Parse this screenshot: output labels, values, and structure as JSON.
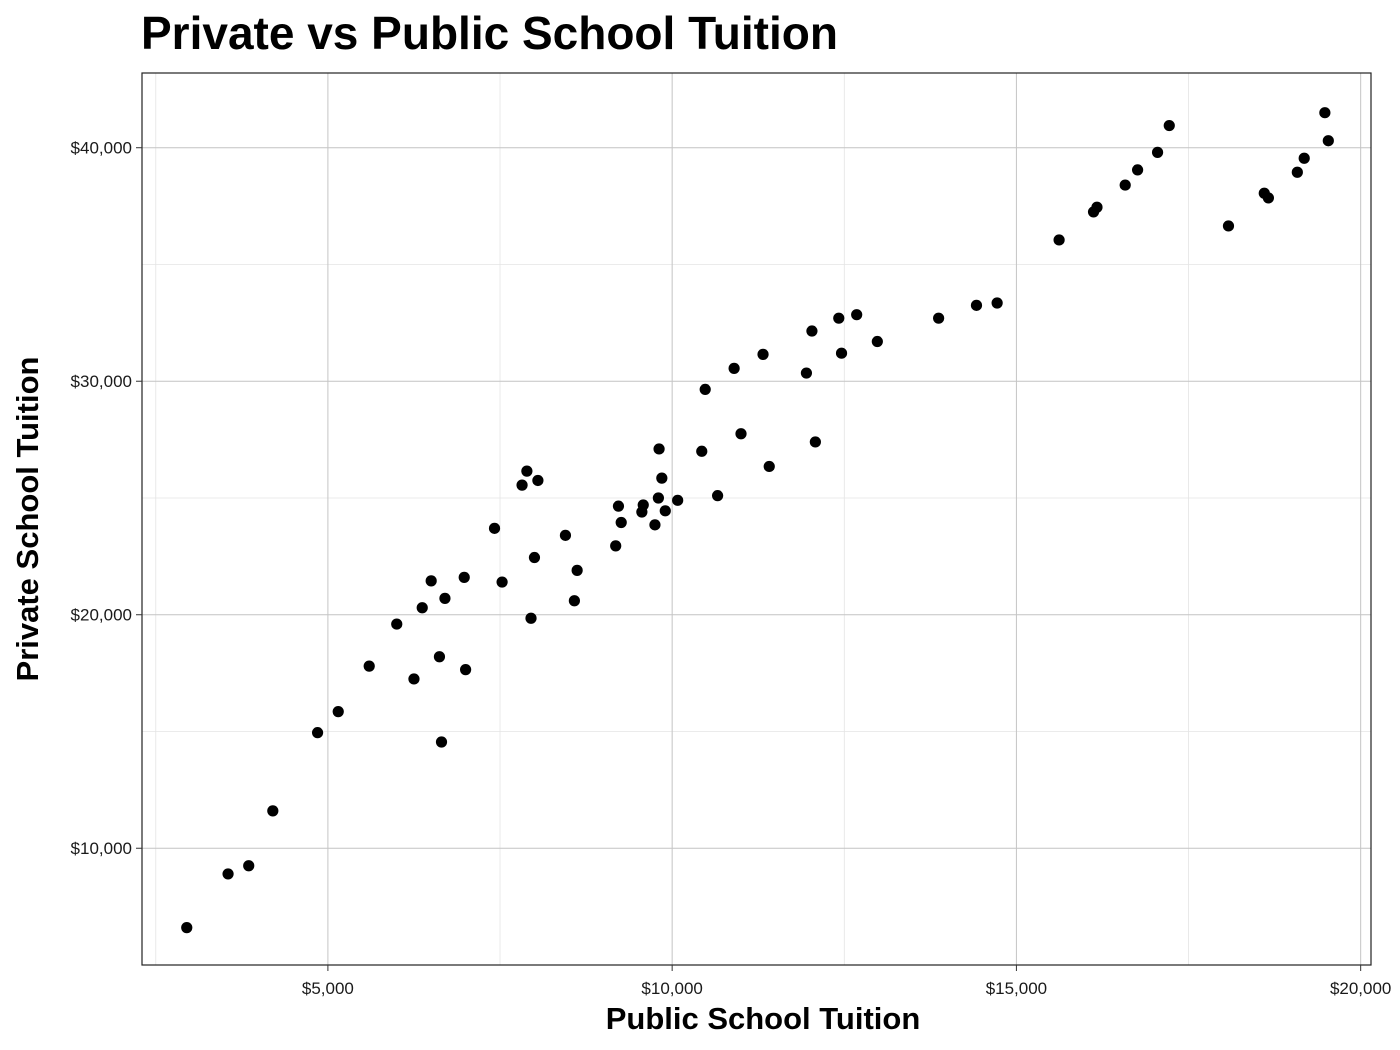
{
  "chart_data": {
    "type": "scatter",
    "title": "Private vs Public School Tuition",
    "xlabel": "Public School Tuition",
    "ylabel": "Private School Tuition",
    "xlim": [
      2300,
      20150
    ],
    "ylim": [
      5000,
      43200
    ],
    "x_ticks": [
      5000,
      10000,
      15000,
      20000
    ],
    "x_tick_labels": [
      "$5,000",
      "$10,000",
      "$15,000",
      "$20,000"
    ],
    "y_ticks": [
      10000,
      20000,
      30000,
      40000
    ],
    "y_tick_labels": [
      "$10,000",
      "$20,000",
      "$30,000",
      "$40,000"
    ],
    "grid": true,
    "point_color": "#000000",
    "points": [
      {
        "x": 2950,
        "y": 6600
      },
      {
        "x": 3550,
        "y": 8900
      },
      {
        "x": 3850,
        "y": 9250
      },
      {
        "x": 4200,
        "y": 11600
      },
      {
        "x": 4850,
        "y": 14950
      },
      {
        "x": 5150,
        "y": 15850
      },
      {
        "x": 5600,
        "y": 17800
      },
      {
        "x": 6000,
        "y": 19600
      },
      {
        "x": 6250,
        "y": 17250
      },
      {
        "x": 6370,
        "y": 20300
      },
      {
        "x": 6500,
        "y": 21450
      },
      {
        "x": 6620,
        "y": 18200
      },
      {
        "x": 6650,
        "y": 14550
      },
      {
        "x": 6700,
        "y": 20700
      },
      {
        "x": 6980,
        "y": 21600
      },
      {
        "x": 7000,
        "y": 17650
      },
      {
        "x": 7420,
        "y": 23700
      },
      {
        "x": 7530,
        "y": 21400
      },
      {
        "x": 7820,
        "y": 25550
      },
      {
        "x": 7890,
        "y": 26150
      },
      {
        "x": 7950,
        "y": 19850
      },
      {
        "x": 8000,
        "y": 22450
      },
      {
        "x": 8050,
        "y": 25750
      },
      {
        "x": 8450,
        "y": 23400
      },
      {
        "x": 8580,
        "y": 20600
      },
      {
        "x": 8620,
        "y": 21900
      },
      {
        "x": 9180,
        "y": 22950
      },
      {
        "x": 9220,
        "y": 24650
      },
      {
        "x": 9260,
        "y": 23950
      },
      {
        "x": 9560,
        "y": 24400
      },
      {
        "x": 9580,
        "y": 24700
      },
      {
        "x": 9750,
        "y": 23850
      },
      {
        "x": 9800,
        "y": 25000
      },
      {
        "x": 9810,
        "y": 27100
      },
      {
        "x": 9850,
        "y": 25850
      },
      {
        "x": 9900,
        "y": 24450
      },
      {
        "x": 10080,
        "y": 24900
      },
      {
        "x": 10430,
        "y": 27000
      },
      {
        "x": 10480,
        "y": 29650
      },
      {
        "x": 10660,
        "y": 25100
      },
      {
        "x": 10900,
        "y": 30550
      },
      {
        "x": 11000,
        "y": 27750
      },
      {
        "x": 11320,
        "y": 31150
      },
      {
        "x": 11410,
        "y": 26350
      },
      {
        "x": 11950,
        "y": 30350
      },
      {
        "x": 12030,
        "y": 32150
      },
      {
        "x": 12080,
        "y": 27400
      },
      {
        "x": 12420,
        "y": 32700
      },
      {
        "x": 12460,
        "y": 31200
      },
      {
        "x": 12680,
        "y": 32850
      },
      {
        "x": 12980,
        "y": 31700
      },
      {
        "x": 13870,
        "y": 32700
      },
      {
        "x": 14420,
        "y": 33250
      },
      {
        "x": 14720,
        "y": 33350
      },
      {
        "x": 15620,
        "y": 36050
      },
      {
        "x": 16120,
        "y": 37250
      },
      {
        "x": 16170,
        "y": 37450
      },
      {
        "x": 16580,
        "y": 38400
      },
      {
        "x": 16760,
        "y": 39050
      },
      {
        "x": 17050,
        "y": 39800
      },
      {
        "x": 17220,
        "y": 40950
      },
      {
        "x": 18080,
        "y": 36650
      },
      {
        "x": 18600,
        "y": 38050
      },
      {
        "x": 18660,
        "y": 37850
      },
      {
        "x": 19080,
        "y": 38950
      },
      {
        "x": 19180,
        "y": 39550
      },
      {
        "x": 19480,
        "y": 41500
      },
      {
        "x": 19530,
        "y": 40300
      }
    ]
  }
}
